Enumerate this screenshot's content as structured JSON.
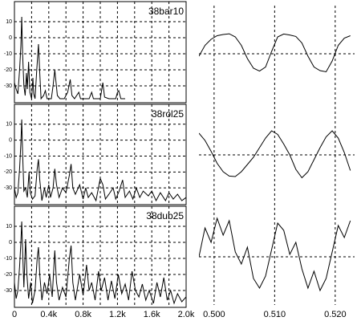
{
  "chart_data": [
    {
      "type": "line",
      "title": "38bar10",
      "xlim": [
        0,
        2000
      ],
      "ylim": [
        -40.5,
        22.5
      ],
      "yticks": [
        10,
        0,
        -10,
        -20,
        -30
      ],
      "x": [
        0,
        20,
        40,
        60,
        75,
        85,
        95,
        110,
        125,
        140,
        150,
        165,
        180,
        200,
        215,
        225,
        240,
        260,
        280,
        295,
        310,
        340,
        360,
        380,
        430,
        450,
        470,
        485,
        500,
        530,
        580,
        620,
        650,
        670,
        700,
        750,
        770,
        820,
        870,
        900,
        920,
        1000,
        1030,
        1050,
        1100,
        1180,
        1200,
        1215,
        1240,
        1290
      ],
      "series": [
        {
          "color": "#000000",
          "values": [
            -28,
            -32,
            -35,
            -20,
            -5,
            13,
            -10,
            -30,
            -36,
            -22,
            -32,
            -15,
            -34,
            -38,
            -25,
            -35,
            -38,
            -20,
            -4,
            -22,
            -38,
            -36,
            -33,
            -38,
            -38,
            -30,
            -20,
            -28,
            -36,
            -38,
            -38,
            -34,
            -26,
            -36,
            -38,
            -34,
            -38,
            -38,
            -38,
            -34,
            -38,
            -38,
            -28,
            -37,
            -38,
            -38,
            -34,
            -33,
            -38,
            -38
          ]
        }
      ]
    },
    {
      "type": "line",
      "title": "38rol25",
      "xlim": [
        0,
        2000
      ],
      "ylim": [
        -40.5,
        22.5
      ],
      "yticks": [
        10,
        0,
        -10,
        -20,
        -30
      ],
      "x": [
        0,
        20,
        40,
        60,
        75,
        85,
        95,
        110,
        130,
        150,
        170,
        185,
        210,
        240,
        265,
        280,
        295,
        320,
        350,
        370,
        400,
        420,
        450,
        470,
        490,
        520,
        560,
        600,
        640,
        660,
        680,
        710,
        760,
        800,
        830,
        860,
        900,
        950,
        1000,
        1030,
        1060,
        1100,
        1150,
        1180,
        1220,
        1260,
        1290,
        1340,
        1380,
        1420,
        1460,
        1500,
        1560,
        1600,
        1650,
        1700,
        1760,
        1800,
        1850,
        1900,
        1950,
        2000
      ],
      "series": [
        {
          "color": "#000000",
          "values": [
            -30,
            -36,
            -33,
            -18,
            -2,
            13,
            -8,
            -32,
            -30,
            -36,
            -20,
            -33,
            -37,
            -35,
            -18,
            -12,
            -25,
            -38,
            -30,
            -36,
            -28,
            -36,
            -30,
            -18,
            -28,
            -36,
            -30,
            -33,
            -22,
            -15,
            -30,
            -34,
            -28,
            -37,
            -30,
            -36,
            -33,
            -38,
            -24,
            -28,
            -37,
            -34,
            -30,
            -37,
            -32,
            -25,
            -36,
            -32,
            -37,
            -30,
            -36,
            -32,
            -35,
            -32,
            -38,
            -33,
            -38,
            -33,
            -37,
            -34,
            -38,
            -36
          ]
        }
      ]
    },
    {
      "type": "line",
      "title": "38dub25",
      "xlim": [
        0,
        2000
      ],
      "ylim": [
        -40.5,
        22.5
      ],
      "yticks": [
        10,
        0,
        -10,
        -20,
        -30
      ],
      "xticks": [
        0,
        {
          "value": 400,
          "label": "0.4k"
        },
        {
          "value": 800,
          "label": "0.8k"
        },
        {
          "value": 1200,
          "label": "1.2k"
        },
        {
          "value": 1600,
          "label": "1.6k"
        },
        {
          "value": 2000,
          "label": "2.0k"
        }
      ],
      "xgrid": [
        200,
        400,
        600,
        800,
        1000,
        1200,
        1400,
        1600,
        1800
      ],
      "x": [
        0,
        20,
        40,
        60,
        75,
        85,
        95,
        110,
        130,
        145,
        165,
        190,
        210,
        240,
        265,
        280,
        295,
        320,
        350,
        380,
        410,
        440,
        470,
        490,
        520,
        560,
        600,
        640,
        660,
        680,
        710,
        760,
        800,
        840,
        870,
        900,
        940,
        980,
        1010,
        1050,
        1090,
        1130,
        1170,
        1210,
        1250,
        1290,
        1330,
        1370,
        1410,
        1450,
        1490,
        1530,
        1570,
        1620,
        1660,
        1700,
        1740,
        1780,
        1820,
        1860,
        1900,
        1950,
        2000
      ],
      "series": [
        {
          "color": "#000000",
          "values": [
            -25,
            -35,
            -30,
            -15,
            0,
            13,
            -5,
            -28,
            2,
            -20,
            -35,
            -25,
            -38,
            -30,
            -10,
            -3,
            -20,
            -36,
            -25,
            -32,
            -20,
            -34,
            -5,
            -25,
            -36,
            -28,
            -34,
            -10,
            -2,
            -25,
            -36,
            -20,
            -33,
            -14,
            -30,
            -25,
            -36,
            -18,
            -30,
            -22,
            -36,
            -24,
            -35,
            -20,
            -32,
            -26,
            -36,
            -18,
            -30,
            -34,
            -26,
            -36,
            -30,
            -38,
            -25,
            -34,
            -22,
            -36,
            -30,
            -38,
            -32,
            -37,
            -34
          ]
        }
      ]
    },
    {
      "type": "line",
      "xlim": [
        0.4975,
        0.5232
      ],
      "ylim": [
        -2,
        2
      ],
      "ygrid": [
        0
      ],
      "x": [
        0.4975,
        0.4985,
        0.4995,
        0.5005,
        0.5015,
        0.5025,
        0.5035,
        0.5045,
        0.5055,
        0.5065,
        0.5075,
        0.5085,
        0.5095,
        0.5105,
        0.5115,
        0.5125,
        0.5135,
        0.5145,
        0.5155,
        0.5165,
        0.5175,
        0.5185,
        0.5195,
        0.5205,
        0.5215,
        0.5225
      ],
      "series": [
        {
          "color": "#000000",
          "values": [
            -0.1,
            0.35,
            0.6,
            0.75,
            0.8,
            0.83,
            0.7,
            0.35,
            -0.2,
            -0.6,
            -0.72,
            -0.55,
            0.1,
            0.7,
            0.82,
            0.78,
            0.72,
            0.45,
            -0.1,
            -0.55,
            -0.7,
            -0.75,
            -0.3,
            0.35,
            0.65,
            0.75
          ]
        }
      ]
    },
    {
      "type": "line",
      "xlim": [
        0.4975,
        0.5232
      ],
      "ylim": [
        -2,
        2
      ],
      "ygrid": [
        0
      ],
      "x": [
        0.4975,
        0.4985,
        0.4995,
        0.5005,
        0.5015,
        0.5025,
        0.5035,
        0.5045,
        0.5055,
        0.5065,
        0.5075,
        0.5085,
        0.5095,
        0.5105,
        0.5115,
        0.5125,
        0.5135,
        0.5145,
        0.5155,
        0.5165,
        0.5175,
        0.5185,
        0.5195,
        0.5205,
        0.5215,
        0.5225
      ],
      "series": [
        {
          "color": "#000000",
          "values": [
            0.9,
            0.6,
            0.15,
            -0.35,
            -0.7,
            -0.88,
            -0.9,
            -0.7,
            -0.4,
            -0.1,
            0.3,
            0.7,
            1.0,
            0.85,
            0.45,
            0.0,
            -0.6,
            -0.95,
            -0.7,
            -0.2,
            0.3,
            0.75,
            1.0,
            0.7,
            0.1,
            -0.65
          ]
        }
      ]
    },
    {
      "type": "line",
      "xlim": [
        0.4975,
        0.5232
      ],
      "ylim": [
        -2,
        2
      ],
      "ygrid": [
        0
      ],
      "xticks": [
        {
          "value": 0.5,
          "label": "0.500"
        },
        {
          "value": 0.51,
          "label": "0.510"
        },
        {
          "value": 0.52,
          "label": "0.520"
        }
      ],
      "x": [
        0.4975,
        0.4985,
        0.4995,
        0.5005,
        0.5015,
        0.5025,
        0.5035,
        0.5045,
        0.5055,
        0.5065,
        0.5075,
        0.5085,
        0.5095,
        0.5105,
        0.5115,
        0.5125,
        0.5135,
        0.5145,
        0.5155,
        0.5165,
        0.5175,
        0.5185,
        0.5195,
        0.5205,
        0.5215,
        0.5225
      ],
      "series": [
        {
          "color": "#000000",
          "values": [
            0.0,
            1.2,
            0.6,
            1.6,
            0.9,
            1.5,
            0.2,
            -0.3,
            0.4,
            -0.9,
            -1.3,
            -0.8,
            0.3,
            1.4,
            1.1,
            0.1,
            0.6,
            -0.5,
            -1.3,
            -0.6,
            -1.4,
            -0.9,
            0.2,
            1.3,
            0.8,
            1.5
          ]
        }
      ]
    }
  ]
}
